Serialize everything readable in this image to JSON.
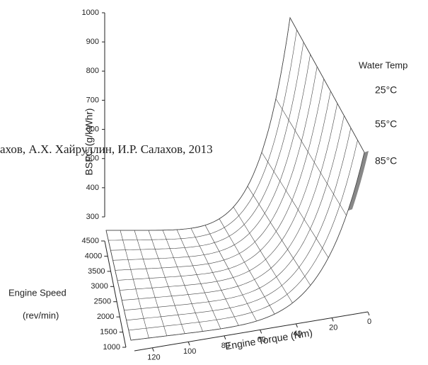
{
  "chart_data": {
    "type": "surface3d",
    "zlabel": "BSFC (g/kWhr)",
    "zlim": [
      300,
      1000
    ],
    "zticks": [
      300,
      400,
      500,
      600,
      700,
      800,
      900,
      1000
    ],
    "ylabel": "Engine Speed",
    "ylabel_unit": "(rev/min)",
    "ylim": [
      1000,
      4500
    ],
    "yticks": [
      1000,
      1500,
      2000,
      2500,
      3000,
      3500,
      4000,
      4500
    ],
    "xlabel": "Engine Torque (Nm)",
    "xlim": [
      0,
      130
    ],
    "xticks": [
      0,
      20,
      40,
      60,
      80,
      100,
      120
    ],
    "legend_title": "Water Temp",
    "series": [
      {
        "name": "25°C"
      },
      {
        "name": "55°C"
      },
      {
        "name": "85°C"
      }
    ],
    "watermark": "ахов, А.Х. Хайруллин,  И.Р. Салахов, 2013"
  }
}
